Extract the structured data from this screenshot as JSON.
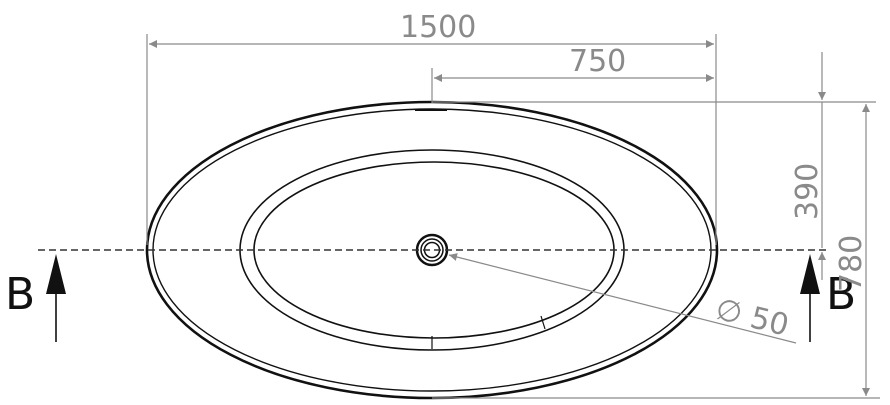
{
  "dimensions": {
    "overall_length": "1500",
    "half_length": "750",
    "half_width": "390",
    "overall_width": "780",
    "drain_diameter": "∅ 50"
  },
  "section": {
    "left_label": "B",
    "right_label": "B"
  }
}
